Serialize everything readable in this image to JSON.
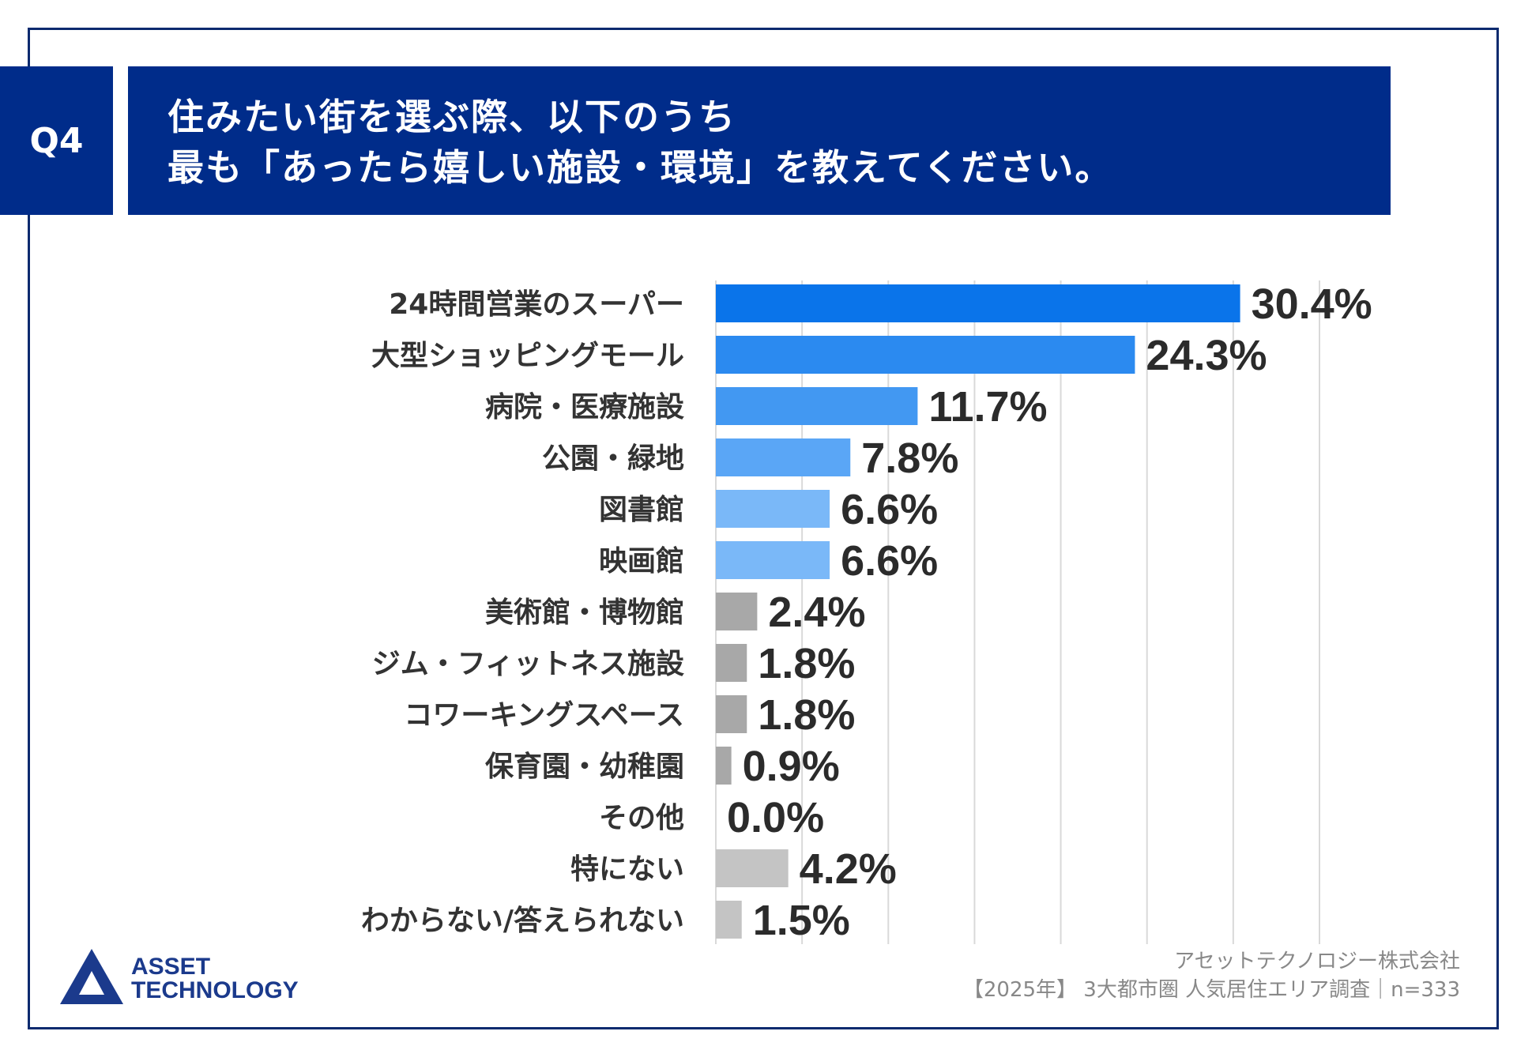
{
  "question": {
    "badge": "Q4",
    "title_line1": "住みたい街を選ぶ際、以下のうち",
    "title_line2": "最も「あったら嬉しい施設・環境」を教えてください。"
  },
  "chart_data": {
    "type": "bar",
    "orientation": "horizontal",
    "categories": [
      "24時間営業のスーパー",
      "大型ショッピングモール",
      "病院・医療施設",
      "公園・緑地",
      "図書館",
      "映画館",
      "美術館・博物館",
      "ジム・フィットネス施設",
      "コワーキングスペース",
      "保育園・幼稚園",
      "その他",
      "特にない",
      "わからない/答えられない"
    ],
    "values": [
      30.4,
      24.3,
      11.7,
      7.8,
      6.6,
      6.6,
      2.4,
      1.8,
      1.8,
      0.9,
      0.0,
      4.2,
      1.5
    ],
    "labels": [
      "30.4%",
      "24.3%",
      "11.7%",
      "7.8%",
      "6.6%",
      "6.6%",
      "2.4%",
      "1.8%",
      "1.8%",
      "0.9%",
      "0.0%",
      "4.2%",
      "1.5%"
    ],
    "colors": [
      "#0a74ea",
      "#2b8af0",
      "#4298f2",
      "#5aa6f6",
      "#7ab8f8",
      "#7ab8f8",
      "#a8a8a8",
      "#a8a8a8",
      "#a8a8a8",
      "#a8a8a8",
      "#a8a8a8",
      "#c4c4c4",
      "#c4c4c4"
    ],
    "xlim": [
      0,
      35
    ],
    "grid": true,
    "xlabel": "",
    "ylabel": ""
  },
  "footer": {
    "company": "アセットテクノロジー株式会社",
    "source": "【2025年】 3大都市圏 人気居住エリア調査｜n=333"
  },
  "logo": {
    "line1": "ASSET",
    "line2": "TECHNOLOGY",
    "color": "#1b3a8c"
  }
}
